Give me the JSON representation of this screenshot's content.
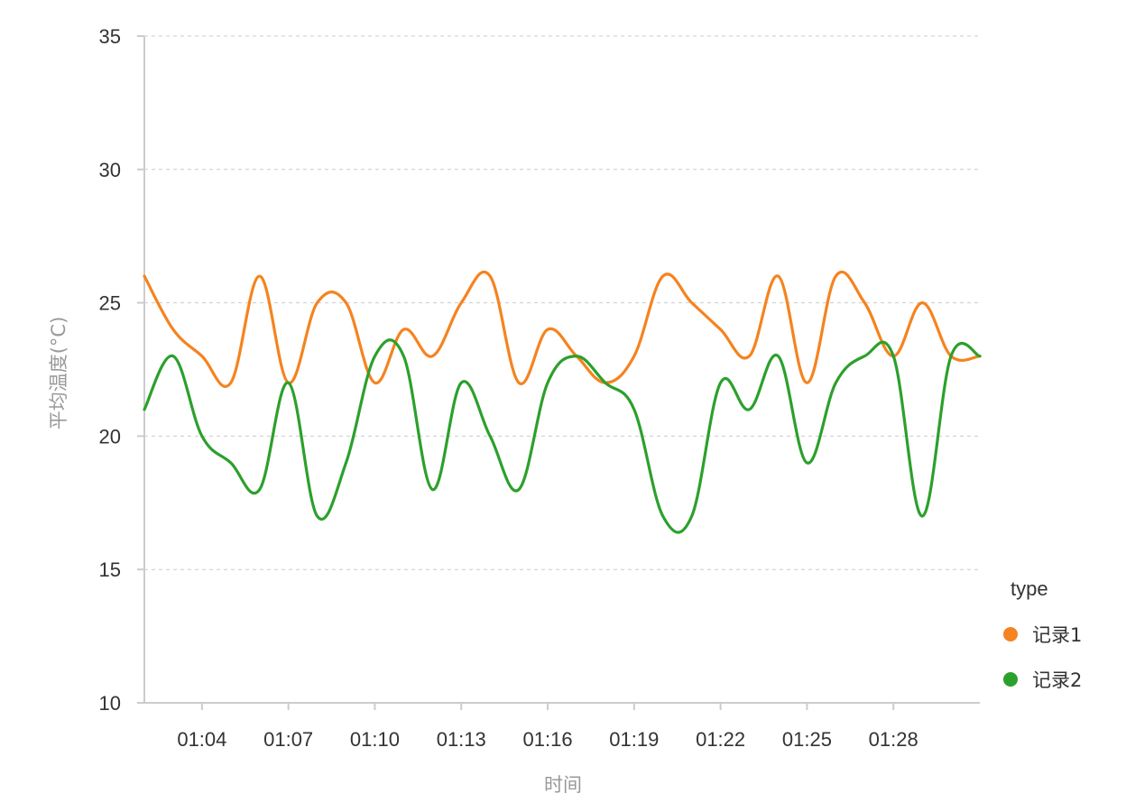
{
  "chart_data": {
    "type": "line",
    "xlabel": "时间",
    "ylabel": "平均温度(°C)",
    "ylim": [
      10,
      35
    ],
    "yticks": [
      10,
      15,
      20,
      25,
      30,
      35
    ],
    "x": [
      "01:02",
      "01:03",
      "01:04",
      "01:05",
      "01:06",
      "01:07",
      "01:08",
      "01:09",
      "01:10",
      "01:11",
      "01:12",
      "01:13",
      "01:14",
      "01:15",
      "01:16",
      "01:17",
      "01:18",
      "01:19",
      "01:20",
      "01:21",
      "01:22",
      "01:23",
      "01:24",
      "01:25",
      "01:26",
      "01:27",
      "01:28",
      "01:29",
      "01:30",
      "01:31"
    ],
    "xticks": [
      "01:04",
      "01:07",
      "01:10",
      "01:13",
      "01:16",
      "01:19",
      "01:22",
      "01:25",
      "01:28"
    ],
    "grid": true,
    "legend": {
      "title": "type",
      "position": "right"
    },
    "series": [
      {
        "name": "记录1",
        "color": "#f5831f",
        "values": [
          26,
          24,
          23,
          22,
          26,
          22,
          25,
          25,
          22,
          24,
          23,
          25,
          26,
          22,
          24,
          23,
          22,
          23,
          26,
          25,
          24,
          23,
          26,
          22,
          26,
          25,
          23,
          25,
          23,
          23
        ]
      },
      {
        "name": "记录2",
        "color": "#2ca02c",
        "values": [
          21,
          23,
          20,
          19,
          18,
          22,
          17,
          19,
          23,
          23,
          18,
          22,
          20,
          18,
          22,
          23,
          22,
          21,
          17,
          17,
          22,
          21,
          23,
          19,
          22,
          23,
          23,
          17,
          23,
          23
        ]
      }
    ]
  }
}
